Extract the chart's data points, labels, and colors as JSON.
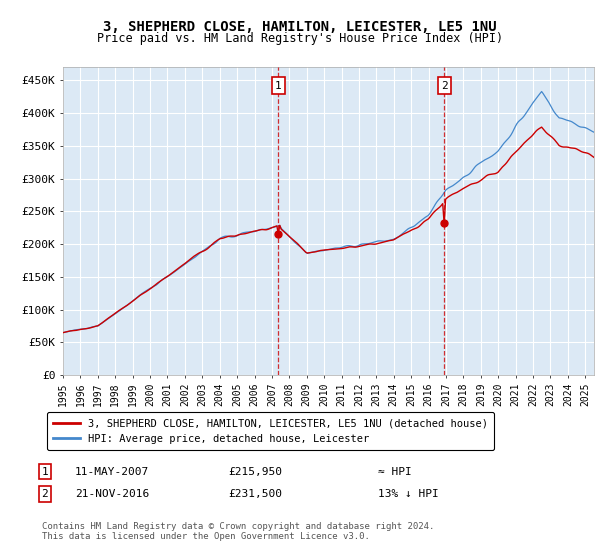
{
  "title": "3, SHEPHERD CLOSE, HAMILTON, LEICESTER, LE5 1NU",
  "subtitle": "Price paid vs. HM Land Registry's House Price Index (HPI)",
  "ylim": [
    0,
    470000
  ],
  "yticks": [
    0,
    50000,
    100000,
    150000,
    200000,
    250000,
    300000,
    350000,
    400000,
    450000
  ],
  "ytick_labels": [
    "£0",
    "£50K",
    "£100K",
    "£150K",
    "£200K",
    "£250K",
    "£300K",
    "£350K",
    "£400K",
    "£450K"
  ],
  "background_color": "#ffffff",
  "plot_bg_color": "#dce9f5",
  "grid_color": "#ffffff",
  "hpi_color": "#4488cc",
  "price_color": "#cc0000",
  "sale1_year": 2007.37,
  "sale1_price": 215950,
  "sale2_year": 2016.9,
  "sale2_price": 231500,
  "legend_price_label": "3, SHEPHERD CLOSE, HAMILTON, LEICESTER, LE5 1NU (detached house)",
  "legend_hpi_label": "HPI: Average price, detached house, Leicester",
  "note1_date": "11-MAY-2007",
  "note1_price": "£215,950",
  "note1_rel": "≈ HPI",
  "note2_date": "21-NOV-2016",
  "note2_price": "£231,500",
  "note2_rel": "13% ↓ HPI",
  "footer": "Contains HM Land Registry data © Crown copyright and database right 2024.\nThis data is licensed under the Open Government Licence v3.0.",
  "xmin": 1995.0,
  "xmax": 2025.5
}
